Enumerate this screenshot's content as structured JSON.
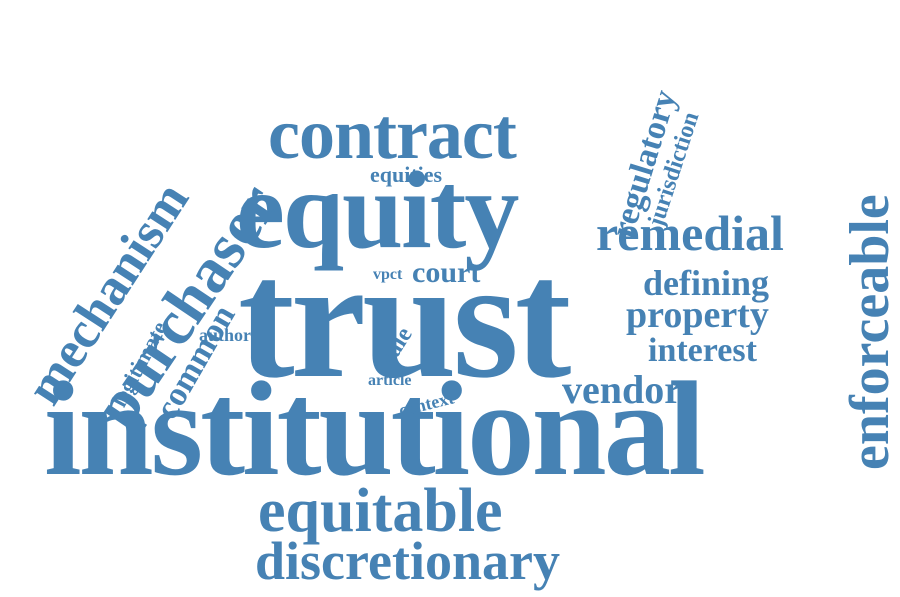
{
  "colors": {
    "word": "#4682b4",
    "background": "#ffffff"
  },
  "words": {
    "trust": "trust",
    "institutional": "institutional",
    "equity": "equity",
    "contract": "contract",
    "equitable": "equitable",
    "discretionary": "discretionary",
    "enforceable": "enforceable",
    "purchaser": "purchaser",
    "mechanism": "mechanism",
    "remedial": "remedial",
    "regulatory": "regulatory",
    "jurisdiction": "jurisdiction",
    "common": "common",
    "legitimate": "legitimate",
    "vendor": "vendor",
    "court": "court",
    "defining": "defining",
    "property": "property",
    "interest": "interest",
    "equities": "equities",
    "vpct": "vpct",
    "author": "author",
    "sale": "sale",
    "article": "article",
    "context": "context"
  }
}
